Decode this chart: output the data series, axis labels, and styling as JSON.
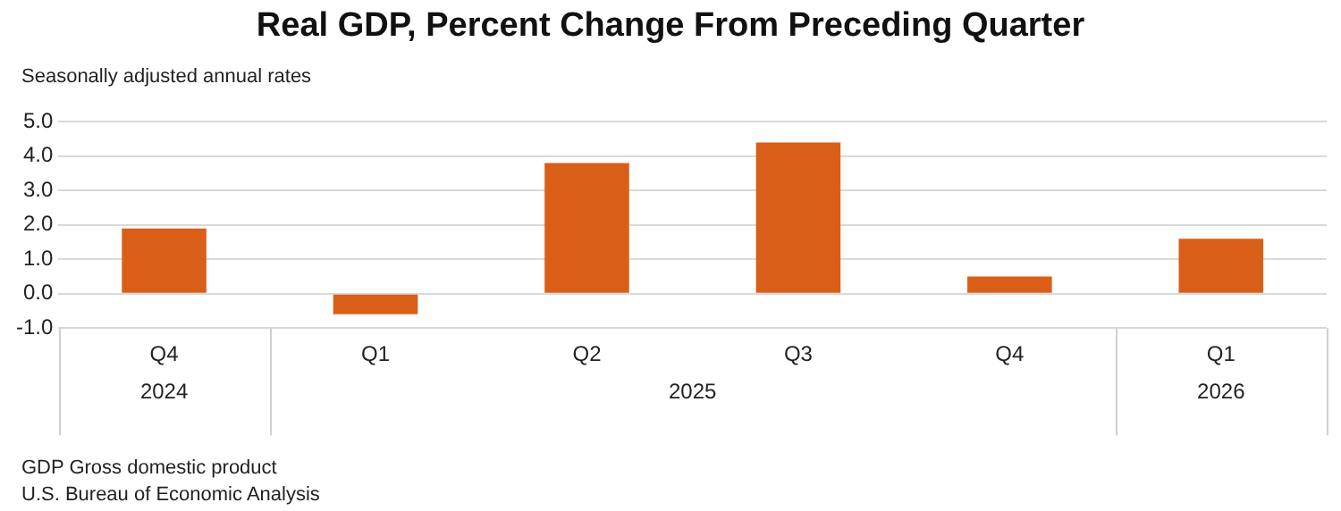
{
  "chart_data": {
    "type": "bar",
    "title": "Real GDP, Percent Change From Preceding Quarter",
    "ylabel": "Seasonally adjusted annual rates",
    "categories": [
      "Q4",
      "Q1",
      "Q2",
      "Q3",
      "Q4",
      "Q1"
    ],
    "values": [
      1.9,
      -0.6,
      3.8,
      4.4,
      0.5,
      1.6
    ],
    "color": "#d95f18",
    "ylim": [
      -1,
      5
    ],
    "yticks": [
      {
        "value": -1,
        "label": "-1.0"
      },
      {
        "value": 0,
        "label": "0.0"
      },
      {
        "value": 1,
        "label": "1.0"
      },
      {
        "value": 2,
        "label": "2.0"
      },
      {
        "value": 3,
        "label": "3.0"
      },
      {
        "value": 4,
        "label": "4.0"
      },
      {
        "value": 5,
        "label": "5.0"
      }
    ],
    "grid": "y",
    "legend": false,
    "annotations": [
      "2024",
      "2025",
      "2026",
      "GDP Gross domestic product",
      "U.S. Bureau of Economic Analysis"
    ]
  }
}
